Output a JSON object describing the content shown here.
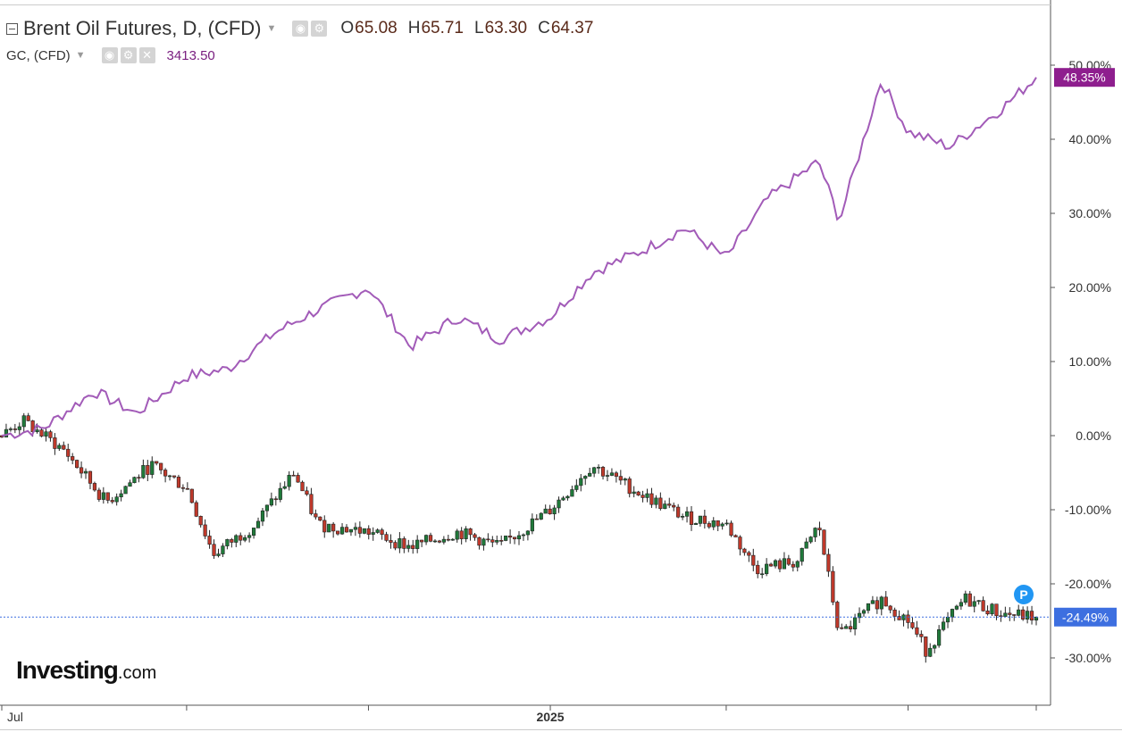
{
  "header": {
    "title": "Brent Oil Futures, D, (CFD)",
    "open_label": "O",
    "open": "65.08",
    "high_label": "H",
    "high": "65.71",
    "low_label": "L",
    "low": "63.30",
    "close_label": "C",
    "close": "64.37",
    "secondary_symbol": "GC, (CFD)",
    "secondary_value": "3413.50"
  },
  "watermark": {
    "brand": "Investing",
    "suffix": ".com"
  },
  "colors": {
    "gold_line": "#a25bb8",
    "gold_badge": "#8e1e8e",
    "oil_badge": "#3d6fe0",
    "up": "#1f7a3a",
    "down": "#c0392b"
  },
  "icons": [
    "collapse-icon",
    "dropdown-caret-icon",
    "visibility-icon",
    "settings-icon",
    "close-icon",
    "pin-p-icon"
  ],
  "chart_data": {
    "type": "line",
    "y_axis": {
      "unit": "%",
      "range": [
        -36,
        58
      ],
      "ticks": [
        "50.00%",
        "40.00%",
        "30.00%",
        "20.00%",
        "10.00%",
        "0.00%",
        "-10.00%",
        "-20.00%",
        "-30.00%"
      ],
      "tick_values": [
        50,
        40,
        30,
        20,
        10,
        0,
        -10,
        -20,
        -30
      ],
      "side": "right",
      "grid": false
    },
    "x_axis": {
      "ticks": [
        "Jul",
        "2025"
      ],
      "range": [
        "2024-07-01",
        "2025-06-13"
      ]
    },
    "last_value_labels": {
      "gold": "48.35%",
      "oil": "-24.49%"
    },
    "series": [
      {
        "name": "GC, (CFD)",
        "style": "line",
        "dates": [
          "2024-07-01",
          "2024-07-15",
          "2024-08-01",
          "2024-08-15",
          "2024-09-01",
          "2024-09-15",
          "2024-10-01",
          "2024-10-15",
          "2024-11-01",
          "2024-11-15",
          "2024-12-01",
          "2024-12-15",
          "2025-01-01",
          "2025-01-15",
          "2025-02-01",
          "2025-02-15",
          "2025-03-01",
          "2025-03-15",
          "2025-04-01",
          "2025-04-08",
          "2025-04-22",
          "2025-05-01",
          "2025-05-15",
          "2025-06-01",
          "2025-06-13"
        ],
        "values": [
          0,
          1,
          6,
          3,
          8,
          9,
          14,
          17,
          20,
          12,
          16,
          13,
          16,
          22,
          25,
          28,
          24,
          32,
          37,
          29,
          48,
          41,
          39,
          44,
          48.35
        ]
      },
      {
        "name": "Brent Oil Futures, D, (CFD)",
        "style": "candlestick",
        "dates": [
          "2024-07-01",
          "2024-07-08",
          "2024-07-22",
          "2024-08-05",
          "2024-08-20",
          "2024-09-01",
          "2024-09-10",
          "2024-09-24",
          "2024-10-07",
          "2024-10-15",
          "2024-11-01",
          "2024-11-15",
          "2024-12-01",
          "2024-12-15",
          "2025-01-01",
          "2025-01-15",
          "2025-02-01",
          "2025-02-15",
          "2025-03-01",
          "2025-03-11",
          "2025-03-25",
          "2025-04-01",
          "2025-04-08",
          "2025-04-22",
          "2025-05-01",
          "2025-05-07",
          "2025-05-20",
          "2025-06-01",
          "2025-06-13"
        ],
        "values": [
          0,
          2,
          -2,
          -9,
          -4,
          -7,
          -16,
          -12,
          -5,
          -12,
          -13,
          -15,
          -13,
          -15,
          -10,
          -4,
          -8,
          -11,
          -12,
          -18,
          -17,
          -12,
          -27,
          -22,
          -25,
          -29,
          -22,
          -24,
          -24.49
        ]
      }
    ]
  }
}
